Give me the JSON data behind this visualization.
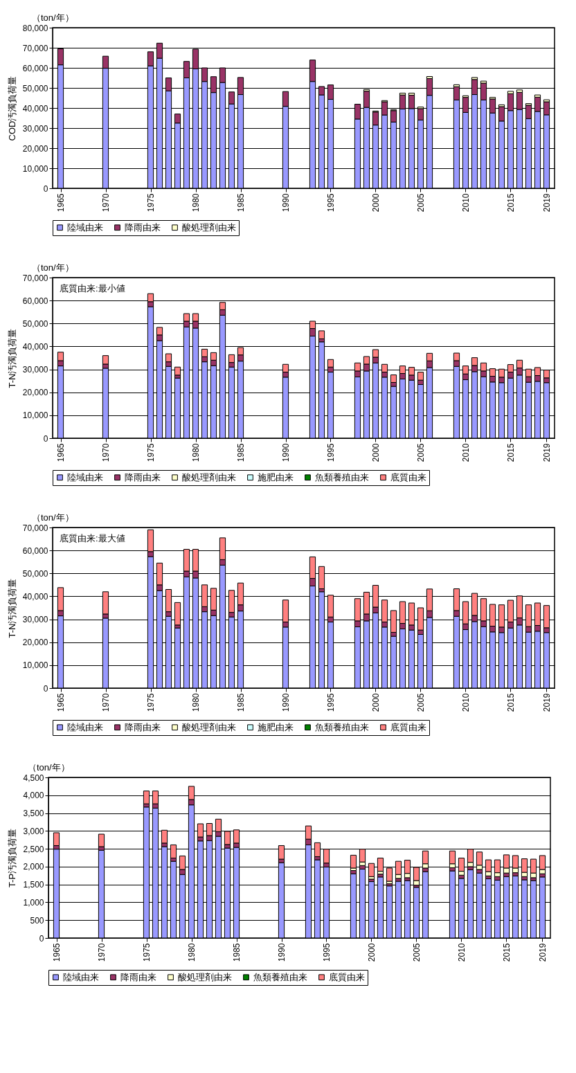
{
  "chart_data": [
    {
      "type": "bar",
      "ylabel": "COD汚濁負荷量",
      "annotations": [
        "（ton/年）"
      ],
      "stacked": true,
      "grid": "y",
      "legend": "bottom",
      "x": [
        1965,
        1970,
        1975,
        1976,
        1977,
        1978,
        1979,
        1980,
        1981,
        1982,
        1983,
        1984,
        1985,
        1990,
        1993,
        1994,
        1995,
        1998,
        1999,
        2000,
        2001,
        2002,
        2003,
        2004,
        2005,
        2006,
        2009,
        2010,
        2011,
        2012,
        2013,
        2014,
        2015,
        2016,
        2017,
        2018,
        2019
      ],
      "xlim": [
        1964.5,
        2019.5
      ],
      "xticks": [
        1965,
        1970,
        1975,
        1980,
        1985,
        1990,
        1995,
        2000,
        2005,
        2010,
        2015,
        2019
      ],
      "ylim": [
        0,
        80000
      ],
      "yticks": [
        {
          "value": 0,
          "label": "0"
        },
        {
          "value": 10000,
          "label": "10,000"
        },
        {
          "value": 20000,
          "label": "20,000"
        },
        {
          "value": 30000,
          "label": "30,000"
        },
        {
          "value": 40000,
          "label": "40,000"
        },
        {
          "value": 50000,
          "label": "50,000"
        },
        {
          "value": 60000,
          "label": "60,000"
        },
        {
          "value": 70000,
          "label": "70,000"
        },
        {
          "value": 80000,
          "label": "80,000"
        }
      ],
      "series": [
        {
          "name": "陸域由来",
          "color": "#9999ff",
          "values": [
            61500,
            59800,
            61000,
            64800,
            48500,
            32500,
            55000,
            59500,
            53200,
            47700,
            52700,
            42000,
            46700,
            40800,
            53200,
            46500,
            44300,
            34500,
            40300,
            31500,
            36500,
            33000,
            39500,
            39700,
            34000,
            46300,
            44000,
            37800,
            46700,
            44000,
            37500,
            33500,
            38700,
            39300,
            34700,
            38300,
            36600
          ]
        },
        {
          "name": "降雨由来",
          "color": "#993366",
          "values": [
            8000,
            6000,
            7000,
            7500,
            6500,
            4500,
            8200,
            9800,
            6800,
            7900,
            7300,
            6000,
            8500,
            7400,
            10700,
            4200,
            7200,
            7400,
            8100,
            6500,
            6600,
            5700,
            7000,
            6700,
            5700,
            8400,
            6600,
            7500,
            7500,
            8400,
            7000,
            7200,
            8400,
            8500,
            6700,
            7100,
            6500
          ]
        },
        {
          "name": "酸処理剤由来",
          "color": "#ffffcc",
          "values": [
            null,
            null,
            null,
            null,
            null,
            null,
            null,
            null,
            null,
            null,
            null,
            null,
            null,
            null,
            null,
            null,
            null,
            null,
            800,
            500,
            600,
            500,
            900,
            1000,
            800,
            1000,
            1000,
            800,
            1000,
            1000,
            800,
            900,
            1200,
            1200,
            800,
            1100,
            1000
          ]
        }
      ]
    },
    {
      "type": "bar",
      "ylabel": "T-N汚濁負荷量",
      "annotations": [
        "（ton/年）",
        "底質由来:最小値"
      ],
      "stacked": true,
      "grid": "y",
      "legend": "bottom",
      "x": [
        1965,
        1970,
        1975,
        1976,
        1977,
        1978,
        1979,
        1980,
        1981,
        1982,
        1983,
        1984,
        1985,
        1990,
        1993,
        1994,
        1995,
        1998,
        1999,
        2000,
        2001,
        2002,
        2003,
        2004,
        2005,
        2006,
        2009,
        2010,
        2011,
        2012,
        2013,
        2014,
        2015,
        2016,
        2017,
        2018,
        2019
      ],
      "xlim": [
        1964.5,
        2019.5
      ],
      "xticks": [
        1965,
        1970,
        1975,
        1980,
        1985,
        1990,
        1995,
        2000,
        2005,
        2010,
        2015,
        2019
      ],
      "ylim": [
        0,
        70000
      ],
      "yticks": [
        {
          "value": 0,
          "label": "0"
        },
        {
          "value": 10000,
          "label": "10,000"
        },
        {
          "value": 20000,
          "label": "20,000"
        },
        {
          "value": 30000,
          "label": "30,000"
        },
        {
          "value": 40000,
          "label": "40,000"
        },
        {
          "value": 50000,
          "label": "50,000"
        },
        {
          "value": 60000,
          "label": "60,000"
        },
        {
          "value": 70000,
          "label": "70,000"
        }
      ],
      "series": [
        {
          "name": "陸域由来",
          "color": "#9999ff",
          "values": [
            31500,
            30500,
            57300,
            42500,
            31300,
            26200,
            48500,
            48000,
            33300,
            31600,
            53600,
            31000,
            33600,
            26600,
            44500,
            42000,
            28800,
            26700,
            29300,
            32800,
            26600,
            22600,
            25800,
            25300,
            23400,
            30800,
            31300,
            25500,
            29000,
            26800,
            24500,
            24200,
            26200,
            27500,
            24400,
            24800,
            24200
          ]
        },
        {
          "name": "降雨由来",
          "color": "#993366",
          "values": [
            2300,
            1800,
            2200,
            2500,
            2000,
            1300,
            2500,
            3000,
            2200,
            2400,
            2400,
            2000,
            2700,
            2200,
            3300,
            1300,
            2200,
            2600,
            3000,
            2500,
            2200,
            1700,
            2400,
            2200,
            1900,
            2900,
            2500,
            2500,
            2700,
            2500,
            2500,
            2400,
            2600,
            3100,
            2400,
            2500,
            2100
          ]
        },
        {
          "name": "酸処理剤由来",
          "color": "#ffffcc",
          "values": [
            null,
            null,
            null,
            null,
            null,
            null,
            null,
            null,
            null,
            null,
            null,
            null,
            null,
            null,
            null,
            null,
            null,
            null,
            null,
            null,
            null,
            null,
            null,
            null,
            null,
            null,
            null,
            null,
            null,
            null,
            null,
            null,
            null,
            null,
            null,
            null,
            null
          ]
        },
        {
          "name": "施肥由来",
          "color": "#ccffff",
          "values": [
            null,
            null,
            null,
            null,
            null,
            null,
            null,
            null,
            null,
            null,
            null,
            null,
            null,
            null,
            null,
            null,
            null,
            null,
            null,
            null,
            null,
            null,
            null,
            null,
            null,
            null,
            null,
            null,
            null,
            null,
            null,
            null,
            null,
            null,
            null,
            null,
            null
          ]
        },
        {
          "name": "魚類養殖由来",
          "color": "#008000",
          "values": [
            null,
            null,
            null,
            null,
            null,
            null,
            null,
            null,
            null,
            null,
            null,
            null,
            null,
            null,
            null,
            null,
            null,
            null,
            null,
            null,
            null,
            null,
            null,
            null,
            null,
            null,
            null,
            null,
            null,
            null,
            null,
            null,
            null,
            null,
            null,
            null,
            null
          ]
        },
        {
          "name": "底質由来",
          "color": "#ff8080",
          "values": [
            3700,
            3700,
            3500,
            3300,
            3500,
            3500,
            3300,
            3300,
            3300,
            3300,
            3200,
            3400,
            3200,
            3400,
            3200,
            3500,
            3300,
            3500,
            3300,
            3300,
            3400,
            3300,
            3300,
            3400,
            3500,
            3300,
            3300,
            3500,
            3400,
            3500,
            3300,
            3500,
            3300,
            3400,
            3300,
            3500,
            3400
          ]
        }
      ]
    },
    {
      "type": "bar",
      "ylabel": "T-N汚濁負荷量",
      "annotations": [
        "（ton/年）",
        "底質由来:最大値"
      ],
      "stacked": true,
      "grid": "y",
      "legend": "bottom",
      "x": [
        1965,
        1970,
        1975,
        1976,
        1977,
        1978,
        1979,
        1980,
        1981,
        1982,
        1983,
        1984,
        1985,
        1990,
        1993,
        1994,
        1995,
        1998,
        1999,
        2000,
        2001,
        2002,
        2003,
        2004,
        2005,
        2006,
        2009,
        2010,
        2011,
        2012,
        2013,
        2014,
        2015,
        2016,
        2017,
        2018,
        2019
      ],
      "xlim": [
        1964.5,
        2019.5
      ],
      "xticks": [
        1965,
        1970,
        1975,
        1980,
        1985,
        1990,
        1995,
        2000,
        2005,
        2010,
        2015,
        2019
      ],
      "ylim": [
        0,
        70000
      ],
      "yticks": [
        {
          "value": 0,
          "label": "0"
        },
        {
          "value": 10000,
          "label": "10,000"
        },
        {
          "value": 20000,
          "label": "20,000"
        },
        {
          "value": 30000,
          "label": "30,000"
        },
        {
          "value": 40000,
          "label": "40,000"
        },
        {
          "value": 50000,
          "label": "50,000"
        },
        {
          "value": 60000,
          "label": "60,000"
        },
        {
          "value": 70000,
          "label": "70,000"
        }
      ],
      "series": [
        {
          "name": "陸域由来",
          "color": "#9999ff",
          "values": [
            31500,
            30500,
            57300,
            42500,
            31300,
            26200,
            48500,
            48000,
            33300,
            31600,
            53600,
            31000,
            33600,
            26600,
            44500,
            42000,
            28800,
            26700,
            29300,
            32800,
            26600,
            22600,
            25800,
            25300,
            23400,
            30800,
            31300,
            25500,
            29000,
            26800,
            24500,
            24200,
            26200,
            27500,
            24400,
            24800,
            24200
          ]
        },
        {
          "name": "降雨由来",
          "color": "#993366",
          "values": [
            2300,
            1800,
            2200,
            2500,
            2000,
            1300,
            2500,
            3000,
            2200,
            2400,
            2400,
            2000,
            2700,
            2200,
            3300,
            1300,
            2200,
            2600,
            3000,
            2500,
            2200,
            1700,
            2400,
            2200,
            1900,
            2900,
            2500,
            2500,
            2700,
            2500,
            2500,
            2400,
            2600,
            3100,
            2400,
            2500,
            2100
          ]
        },
        {
          "name": "酸処理剤由来",
          "color": "#ffffcc",
          "values": [
            null,
            null,
            null,
            null,
            null,
            null,
            null,
            null,
            null,
            null,
            null,
            null,
            null,
            null,
            null,
            null,
            null,
            null,
            null,
            null,
            null,
            null,
            null,
            null,
            null,
            null,
            null,
            null,
            null,
            null,
            null,
            null,
            null,
            null,
            null,
            null,
            null
          ]
        },
        {
          "name": "施肥由来",
          "color": "#ccffff",
          "values": [
            null,
            null,
            null,
            null,
            null,
            null,
            null,
            null,
            null,
            null,
            null,
            null,
            null,
            null,
            null,
            null,
            null,
            null,
            null,
            null,
            null,
            null,
            null,
            null,
            null,
            null,
            null,
            null,
            null,
            null,
            null,
            null,
            null,
            null,
            null,
            null,
            null
          ]
        },
        {
          "name": "魚類養殖由来",
          "color": "#008000",
          "values": [
            null,
            null,
            null,
            null,
            null,
            null,
            null,
            null,
            null,
            null,
            null,
            null,
            null,
            null,
            null,
            null,
            null,
            null,
            null,
            null,
            null,
            null,
            null,
            null,
            null,
            null,
            null,
            null,
            null,
            null,
            null,
            null,
            null,
            null,
            null,
            null,
            null
          ]
        },
        {
          "name": "底質由来",
          "color": "#ff8080",
          "values": [
            10000,
            9700,
            9500,
            9500,
            9700,
            9800,
            9500,
            9500,
            9500,
            9500,
            9500,
            9600,
            9500,
            9600,
            9400,
            9700,
            9500,
            9700,
            9500,
            9500,
            9600,
            9500,
            9500,
            9600,
            9700,
            9500,
            9500,
            9700,
            9600,
            9700,
            9500,
            9700,
            9500,
            9600,
            9500,
            9800,
            9700
          ]
        }
      ]
    },
    {
      "type": "bar",
      "ylabel": "T-P汚濁負荷量",
      "annotations": [
        "（ton/年）"
      ],
      "stacked": true,
      "grid": "y",
      "legend": "bottom",
      "x": [
        1965,
        1970,
        1975,
        1976,
        1977,
        1978,
        1979,
        1980,
        1981,
        1982,
        1983,
        1984,
        1985,
        1990,
        1993,
        1994,
        1995,
        1998,
        1999,
        2000,
        2001,
        2002,
        2003,
        2004,
        2005,
        2006,
        2009,
        2010,
        2011,
        2012,
        2013,
        2014,
        2015,
        2016,
        2017,
        2018,
        2019
      ],
      "xlim": [
        1964.5,
        2019.5
      ],
      "xticks": [
        1965,
        1970,
        1975,
        1980,
        1985,
        1990,
        1995,
        2000,
        2005,
        2010,
        2015,
        2019
      ],
      "ylim": [
        0,
        4500
      ],
      "yticks": [
        {
          "value": 0,
          "label": "0"
        },
        500,
        {
          "value": 1000,
          "label": "1,000"
        },
        {
          "value": 1500,
          "label": "1,500"
        },
        {
          "value": 2000,
          "label": "2,000"
        },
        {
          "value": 2500,
          "label": "2,500"
        },
        {
          "value": 3000,
          "label": "3,000"
        },
        {
          "value": 3500,
          "label": "3,500"
        },
        {
          "value": 4000,
          "label": "4,000"
        },
        {
          "value": 4500,
          "label": "4,500"
        }
      ],
      "series": [
        {
          "name": "陸域由来",
          "color": "#9999ff",
          "values": [
            2490,
            2460,
            3670,
            3640,
            2560,
            2150,
            1780,
            3730,
            2720,
            2730,
            2850,
            2520,
            2540,
            2110,
            2610,
            2190,
            1990,
            1800,
            1930,
            1580,
            1710,
            1460,
            1590,
            1610,
            1420,
            1860,
            1880,
            1670,
            1910,
            1820,
            1660,
            1620,
            1720,
            1740,
            1630,
            1610,
            1710
          ]
        },
        {
          "name": "降雨由来",
          "color": "#993366",
          "values": [
            100,
            100,
            90,
            120,
            100,
            90,
            140,
            150,
            110,
            140,
            130,
            100,
            120,
            100,
            160,
            90,
            110,
            90,
            100,
            70,
            80,
            60,
            80,
            80,
            60,
            100,
            90,
            90,
            90,
            100,
            80,
            100,
            100,
            90,
            90,
            80,
            90
          ]
        },
        {
          "name": "酸処理剤由来",
          "color": "#ffffcc",
          "values": [
            null,
            null,
            null,
            null,
            null,
            null,
            null,
            null,
            null,
            null,
            null,
            null,
            null,
            null,
            null,
            null,
            null,
            70,
            100,
            70,
            80,
            70,
            110,
            120,
            130,
            120,
            110,
            110,
            120,
            120,
            120,
            110,
            140,
            130,
            120,
            130,
            120
          ]
        },
        {
          "name": "魚類養殖由来",
          "color": "#008000",
          "values": [
            null,
            null,
            null,
            null,
            null,
            null,
            null,
            null,
            null,
            null,
            null,
            null,
            null,
            null,
            null,
            null,
            null,
            null,
            null,
            null,
            null,
            null,
            null,
            null,
            null,
            null,
            null,
            null,
            null,
            null,
            null,
            null,
            null,
            null,
            null,
            null,
            null
          ]
        },
        {
          "name": "底質由来",
          "color": "#ff8080",
          "values": [
            360,
            350,
            360,
            360,
            360,
            370,
            380,
            370,
            370,
            340,
            350,
            370,
            370,
            380,
            370,
            390,
            390,
            360,
            360,
            370,
            370,
            370,
            370,
            370,
            370,
            360,
            360,
            370,
            370,
            370,
            330,
            360,
            370,
            350,
            380,
            390,
            390
          ]
        }
      ]
    }
  ]
}
